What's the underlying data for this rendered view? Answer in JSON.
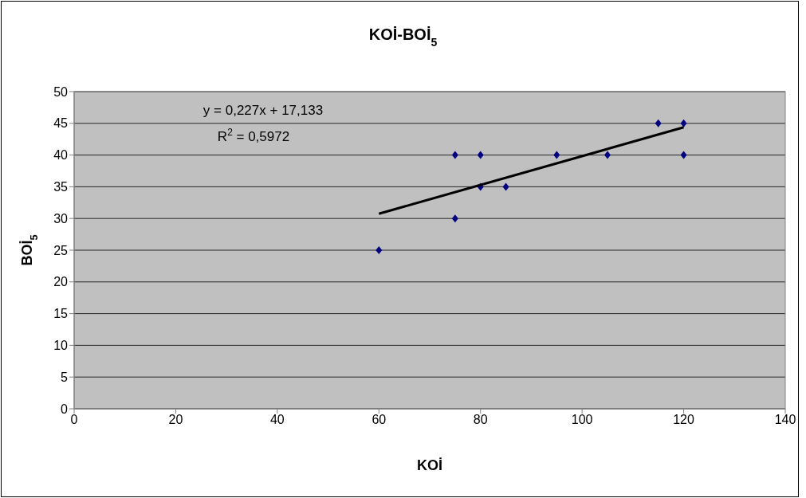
{
  "chart_data": {
    "type": "scatter",
    "title": "KOİ-BOİ$_{5}$",
    "xlabel": "KOİ",
    "ylabel": "BOİ$_{5}$",
    "annotations": [
      "y = 0,227x + 17,133",
      "R$^{2}$ = 0,5972"
    ],
    "series": [
      {
        "color": "#000080",
        "marker": "diamond",
        "x": [
          60,
          75,
          75,
          80,
          80,
          85,
          95,
          105,
          115,
          120,
          120
        ],
        "values": [
          25,
          40,
          30,
          40,
          35,
          35,
          40,
          40,
          45,
          45,
          40
        ]
      },
      {
        "type": "line",
        "color": "#000000",
        "x": [
          60,
          120
        ],
        "values": [
          30.75,
          44.37
        ]
      }
    ],
    "xlim": [
      0,
      140
    ],
    "xticks": [
      0,
      20,
      40,
      60,
      80,
      100,
      120,
      140
    ],
    "ylim": [
      0,
      50
    ],
    "yticks": [
      0,
      5,
      10,
      15,
      20,
      25,
      30,
      35,
      40,
      45,
      50
    ],
    "grid": "y",
    "line_style": "solid"
  }
}
